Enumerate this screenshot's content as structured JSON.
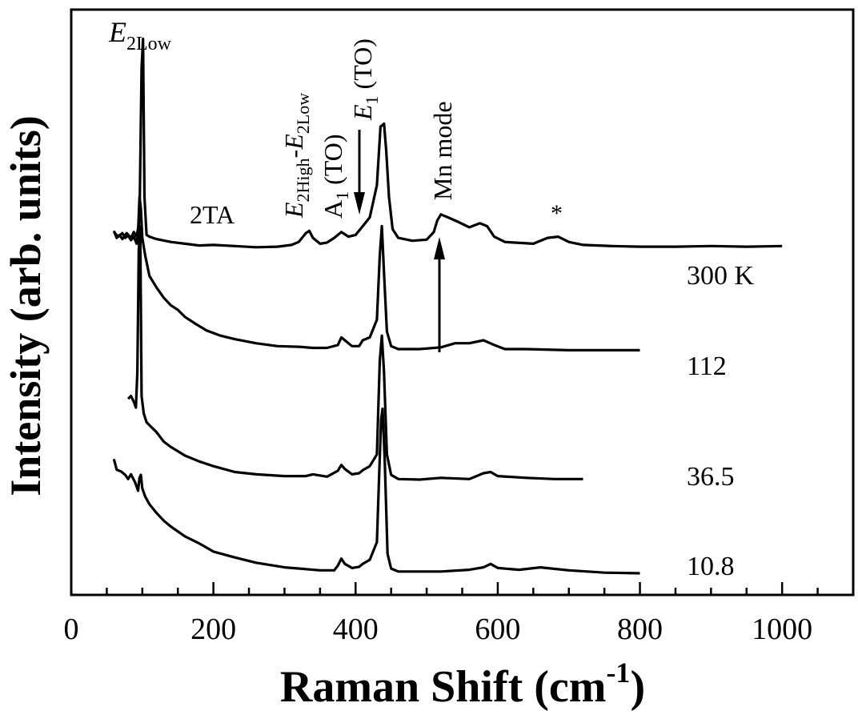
{
  "chart_data": {
    "type": "line",
    "title": "",
    "xlabel": "Raman Shift (cm",
    "xlabel_sup": "-1",
    "xlabel_close": ")",
    "ylabel": "Intensity (arb. units)",
    "xlim": [
      0,
      1100
    ],
    "ylim": [
      0,
      1
    ],
    "x_ticks": [
      0,
      200,
      400,
      600,
      800,
      1000
    ],
    "x_minor_step": 50,
    "grid": false,
    "legend": "none",
    "y_tick_labels": false,
    "series_labels": [
      "300 K",
      "112",
      "36.5",
      "10.8"
    ],
    "annotations": {
      "e2low_main": "E",
      "e2low_sub": "2Low",
      "two_ta": "2TA",
      "combo_e": "E",
      "combo_sub1": "2High",
      "combo_dash": "-",
      "combo_e2": "E",
      "combo_sub2": "2Low",
      "a1_main": "A",
      "a1_sub": "1",
      "a1_rest": " (TO)",
      "e1_main": "E",
      "e1_sub": "1",
      "e1_rest": " (TO)",
      "mn_mode": "Mn mode",
      "star": "*"
    },
    "series": [
      {
        "x": [
          60,
          64,
          68,
          72,
          78,
          84,
          88,
          92,
          96,
          99,
          101,
          103,
          106,
          110,
          120,
          140,
          160,
          180,
          200,
          230,
          260,
          290,
          310,
          320,
          330,
          335,
          340,
          350,
          360,
          370,
          380,
          390,
          400,
          410,
          420,
          430,
          435,
          440,
          443,
          447,
          452,
          460,
          480,
          500,
          510,
          515,
          520,
          530,
          545,
          560,
          575,
          585,
          595,
          610,
          650,
          670,
          685,
          700,
          720,
          760,
          800,
          850,
          900,
          950,
          1000
        ],
        "y": [
          0.622,
          0.61,
          0.615,
          0.608,
          0.618,
          0.61,
          0.62,
          0.612,
          0.64,
          0.9,
          0.95,
          0.68,
          0.615,
          0.612,
          0.608,
          0.603,
          0.6,
          0.597,
          0.598,
          0.596,
          0.594,
          0.595,
          0.598,
          0.603,
          0.618,
          0.622,
          0.61,
          0.6,
          0.602,
          0.61,
          0.62,
          0.612,
          0.615,
          0.63,
          0.645,
          0.7,
          0.8,
          0.805,
          0.76,
          0.68,
          0.625,
          0.61,
          0.605,
          0.607,
          0.62,
          0.64,
          0.65,
          0.645,
          0.637,
          0.628,
          0.635,
          0.63,
          0.612,
          0.603,
          0.6,
          0.61,
          0.612,
          0.603,
          0.598,
          0.596,
          0.595,
          0.595,
          0.596,
          0.595,
          0.596
        ]
      },
      {
        "x": [
          60,
          66,
          72,
          76,
          80,
          84,
          88,
          92,
          94,
          96,
          98,
          100,
          104,
          110,
          120,
          130,
          140,
          150,
          160,
          175,
          190,
          210,
          230,
          260,
          290,
          320,
          340,
          360,
          375,
          380,
          385,
          395,
          405,
          410,
          420,
          430,
          434,
          437,
          440,
          444,
          450,
          460,
          490,
          520,
          540,
          560,
          580,
          595,
          610,
          640,
          700,
          750,
          800
        ],
        "y": [
          0.62,
          0.612,
          0.618,
          0.61,
          0.614,
          0.606,
          0.612,
          0.6,
          0.62,
          0.68,
          0.66,
          0.61,
          0.58,
          0.545,
          0.525,
          0.508,
          0.495,
          0.487,
          0.475,
          0.463,
          0.452,
          0.443,
          0.437,
          0.43,
          0.425,
          0.424,
          0.422,
          0.422,
          0.427,
          0.44,
          0.435,
          0.425,
          0.425,
          0.435,
          0.44,
          0.47,
          0.58,
          0.63,
          0.55,
          0.45,
          0.425,
          0.42,
          0.42,
          0.423,
          0.43,
          0.43,
          0.435,
          0.427,
          0.42,
          0.42,
          0.418,
          0.418,
          0.418
        ]
      },
      {
        "x": [
          80,
          84,
          88,
          91,
          93,
          95,
          97,
          99,
          102,
          106,
          110,
          120,
          130,
          140,
          160,
          180,
          200,
          230,
          260,
          300,
          330,
          340,
          360,
          375,
          380,
          385,
          395,
          405,
          410,
          420,
          430,
          434,
          437,
          440,
          444,
          450,
          460,
          490,
          520,
          560,
          580,
          590,
          600,
          640,
          680,
          720
        ],
        "y": [
          0.335,
          0.34,
          0.33,
          0.32,
          0.38,
          0.59,
          0.63,
          0.34,
          0.31,
          0.295,
          0.29,
          0.278,
          0.262,
          0.253,
          0.238,
          0.228,
          0.22,
          0.21,
          0.206,
          0.203,
          0.203,
          0.206,
          0.202,
          0.212,
          0.222,
          0.215,
          0.206,
          0.208,
          0.213,
          0.22,
          0.24,
          0.4,
          0.443,
          0.38,
          0.24,
          0.205,
          0.198,
          0.197,
          0.2,
          0.198,
          0.208,
          0.21,
          0.203,
          0.2,
          0.198,
          0.198
        ]
      },
      {
        "x": [
          60,
          64,
          70,
          76,
          80,
          84,
          90,
          94,
          96,
          98,
          100,
          104,
          110,
          120,
          130,
          140,
          160,
          180,
          200,
          230,
          260,
          300,
          330,
          350,
          370,
          375,
          380,
          385,
          395,
          405,
          410,
          420,
          430,
          433,
          436,
          438,
          441,
          445,
          450,
          460,
          490,
          520,
          560,
          580,
          590,
          600,
          630,
          660,
          700,
          750,
          800
        ],
        "y": [
          0.232,
          0.214,
          0.211,
          0.205,
          0.198,
          0.206,
          0.192,
          0.178,
          0.2,
          0.205,
          0.182,
          0.168,
          0.155,
          0.14,
          0.127,
          0.117,
          0.1,
          0.088,
          0.074,
          0.064,
          0.055,
          0.047,
          0.044,
          0.042,
          0.042,
          0.05,
          0.062,
          0.053,
          0.046,
          0.048,
          0.053,
          0.06,
          0.09,
          0.2,
          0.3,
          0.318,
          0.23,
          0.07,
          0.045,
          0.04,
          0.04,
          0.04,
          0.043,
          0.047,
          0.053,
          0.046,
          0.043,
          0.047,
          0.042,
          0.038,
          0.037
        ]
      }
    ]
  }
}
